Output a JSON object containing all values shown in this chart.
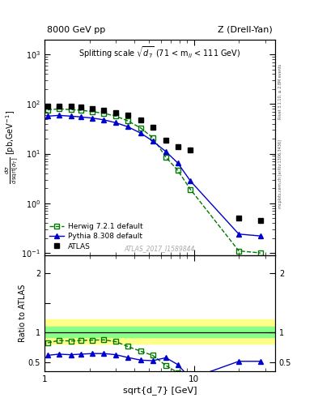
{
  "title_left": "8000 GeV pp",
  "title_right": "Z (Drell-Yan)",
  "annotation": "Splitting scale $\\sqrt{d_7}$ (71 < m$_{ll}$ < 111 GeV)",
  "watermark": "ATLAS_2017_I1589844",
  "right_label_top": "Rivet 3.1.10, ≥ 2.8M events",
  "right_label_bot": "mcplots.cern.ch [arXiv:1306.3436]",
  "ylabel_main": "d$\\sigma$/dsqrt[d$_7$] [pb,GeV$^{-1}$]",
  "ylabel_ratio": "Ratio to ATLAS",
  "xlabel": "sqrt{d_7} [GeV]",
  "atlas_x": [
    1.05,
    1.25,
    1.5,
    1.75,
    2.1,
    2.5,
    3.0,
    3.6,
    4.4,
    5.3,
    6.5,
    7.8,
    9.5,
    20.0,
    28.0
  ],
  "atlas_y": [
    92,
    92,
    90,
    86,
    80,
    74,
    67,
    60,
    48,
    34,
    19,
    14,
    12,
    0.5,
    0.45
  ],
  "herwig_x": [
    1.05,
    1.25,
    1.5,
    1.75,
    2.1,
    2.5,
    3.0,
    3.6,
    4.4,
    5.3,
    6.5,
    7.8,
    9.5,
    20.0,
    28.0
  ],
  "herwig_y": [
    76,
    80,
    77,
    75,
    70,
    65,
    57,
    46,
    33,
    21,
    8.5,
    4.6,
    1.9,
    0.11,
    0.1
  ],
  "pythia_x": [
    1.05,
    1.25,
    1.5,
    1.75,
    2.1,
    2.5,
    3.0,
    3.6,
    4.4,
    5.3,
    6.5,
    7.8,
    9.5,
    20.0,
    28.0
  ],
  "pythia_y": [
    57,
    59,
    57,
    55,
    52,
    48,
    42,
    35,
    26,
    18,
    11,
    6.5,
    2.8,
    0.24,
    0.22
  ],
  "herwig_ratio_x": [
    1.05,
    1.25,
    1.5,
    1.75,
    2.1,
    2.5,
    3.0,
    3.6,
    4.4,
    5.3,
    6.5,
    7.8,
    9.5
  ],
  "herwig_ratio": [
    0.83,
    0.87,
    0.86,
    0.87,
    0.875,
    0.88,
    0.85,
    0.77,
    0.69,
    0.62,
    0.45,
    0.33,
    0.16
  ],
  "pythia_ratio_x": [
    1.05,
    1.25,
    1.5,
    1.75,
    2.1,
    2.5,
    3.0,
    3.6,
    4.4,
    5.3,
    6.5,
    7.8,
    9.5,
    20.0,
    28.0
  ],
  "pythia_ratio": [
    0.62,
    0.64,
    0.63,
    0.64,
    0.65,
    0.65,
    0.63,
    0.585,
    0.54,
    0.53,
    0.58,
    0.465,
    0.23,
    0.52,
    0.52
  ],
  "atlas_color": "#000000",
  "herwig_color": "#007700",
  "pythia_color": "#0000cc",
  "band_yellow_lo": 0.82,
  "band_yellow_hi": 1.22,
  "band_green_lo": 0.93,
  "band_green_hi": 1.1,
  "band_x_switch": 7.0,
  "xlim": [
    1.0,
    35.0
  ],
  "ylim_main": [
    0.09,
    2000
  ],
  "ylim_ratio": [
    0.35,
    2.3
  ]
}
